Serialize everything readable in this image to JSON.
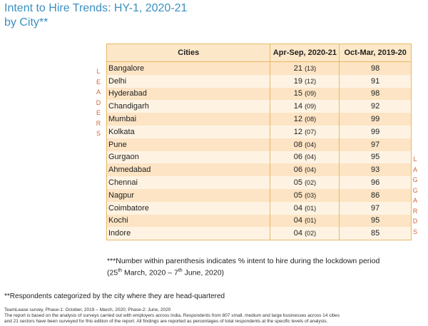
{
  "title": {
    "line1": "Intent to Hire Trends: HY-1, 2020-21",
    "line2": "by City**"
  },
  "leaders_letters": [
    "L",
    "E",
    "A",
    "D",
    "E",
    "R",
    "S"
  ],
  "laggards_letters": [
    "L",
    "A",
    "G",
    "G",
    "A",
    "R",
    "D",
    "S"
  ],
  "table": {
    "headers": [
      "Cities",
      "Apr-Sep, 2020-21",
      "Oct-Mar, 2019-20"
    ],
    "rows": [
      {
        "city": "Bangalore",
        "hy1": "21",
        "lockdown": "(13)",
        "prev": "98"
      },
      {
        "city": "Delhi",
        "hy1": "19",
        "lockdown": "(12)",
        "prev": "91"
      },
      {
        "city": "Hyderabad",
        "hy1": "15",
        "lockdown": "(09)",
        "prev": "98"
      },
      {
        "city": "Chandigarh",
        "hy1": "14",
        "lockdown": "(09)",
        "prev": "92"
      },
      {
        "city": "Mumbai",
        "hy1": "12",
        "lockdown": "(08)",
        "prev": "99"
      },
      {
        "city": "Kolkata",
        "hy1": "12",
        "lockdown": "(07)",
        "prev": "99"
      },
      {
        "city": "Pune",
        "hy1": "08",
        "lockdown": "(04)",
        "prev": "97"
      },
      {
        "city": "Gurgaon",
        "hy1": "06",
        "lockdown": "(04)",
        "prev": "95"
      },
      {
        "city": "Ahmedabad",
        "hy1": "06",
        "lockdown": "(04)",
        "prev": "93"
      },
      {
        "city": "Chennai",
        "hy1": "05",
        "lockdown": "(02)",
        "prev": "96"
      },
      {
        "city": "Nagpur",
        "hy1": "05",
        "lockdown": "(03)",
        "prev": "86"
      },
      {
        "city": "Coimbatore",
        "hy1": "04",
        "lockdown": "(01)",
        "prev": "97"
      },
      {
        "city": "Kochi",
        "hy1": "04",
        "lockdown": "(01)",
        "prev": "95"
      },
      {
        "city": "Indore",
        "hy1": "04",
        "lockdown": "(02)",
        "prev": "85"
      }
    ]
  },
  "note_parenthesis": {
    "line1": "***Number within parenthesis indicates % intent to hire during the lockdown period",
    "line2_a": "(25",
    "sup_a": "th",
    "line2_b": " March, 2020 – 7",
    "sup_b": "th",
    "line2_c": " June, 2020)"
  },
  "note_respondents": "**Respondents categorized by the city where they are head-quartered",
  "source": {
    "line1": "TeamLease survey, Phase-1: October, 2019 – March, 2020; Phase-2: June, 2020",
    "line2": "The report is based on the analysis of surveys carried out with employers across India. Respondents from 807 small, medium and large businesses across 14 cities",
    "line3": "and 21 sectors have been surveyed for this edition of the report.  All findings are reported as percentages of total respondents at the specific levels of analysis."
  }
}
